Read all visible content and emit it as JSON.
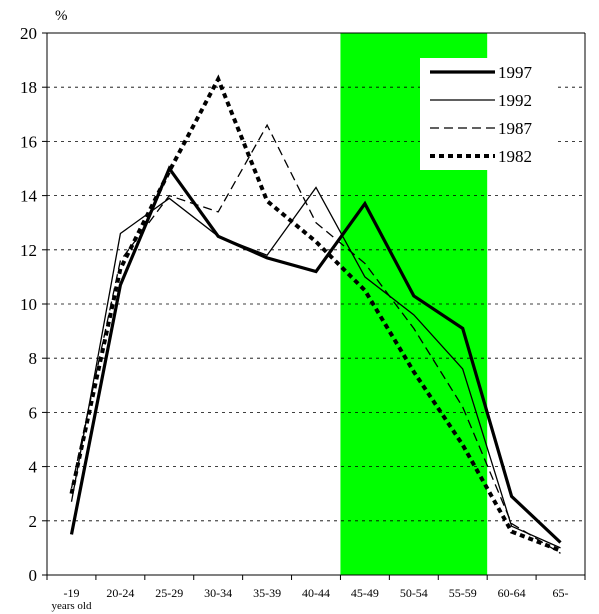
{
  "chart_data": {
    "type": "line",
    "ylabel": "%",
    "xlabel_sub": "years old",
    "ylim": [
      0,
      20
    ],
    "yticks": [
      0,
      2,
      4,
      6,
      8,
      10,
      12,
      14,
      16,
      18,
      20
    ],
    "categories": [
      "-19",
      "20-24",
      "25-29",
      "30-34",
      "35-39",
      "40-44",
      "45-49",
      "50-54",
      "55-59",
      "60-64",
      "65-"
    ],
    "grid": "horizontal-dashed",
    "legend_position": "top-right",
    "highlight": {
      "from": "45-49",
      "to": "55-59",
      "color": "#00ff00"
    },
    "series": [
      {
        "name": "1997",
        "style": "solid-thick",
        "values": [
          1.5,
          10.7,
          15.0,
          12.5,
          11.7,
          11.2,
          13.7,
          10.3,
          9.1,
          2.9,
          1.2
        ]
      },
      {
        "name": "1992",
        "style": "solid-thin",
        "values": [
          2.7,
          12.6,
          13.9,
          12.5,
          11.8,
          14.3,
          11.0,
          9.6,
          7.6,
          1.8,
          1.0
        ]
      },
      {
        "name": "1987",
        "style": "dashed-thin",
        "values": [
          3.2,
          11.6,
          14.0,
          13.4,
          16.6,
          13.0,
          11.5,
          9.1,
          6.2,
          1.9,
          0.8
        ]
      },
      {
        "name": "1982",
        "style": "dotted-thick",
        "values": [
          3.0,
          11.3,
          14.9,
          18.3,
          13.8,
          12.3,
          10.5,
          7.5,
          4.8,
          1.6,
          0.9
        ]
      }
    ]
  }
}
